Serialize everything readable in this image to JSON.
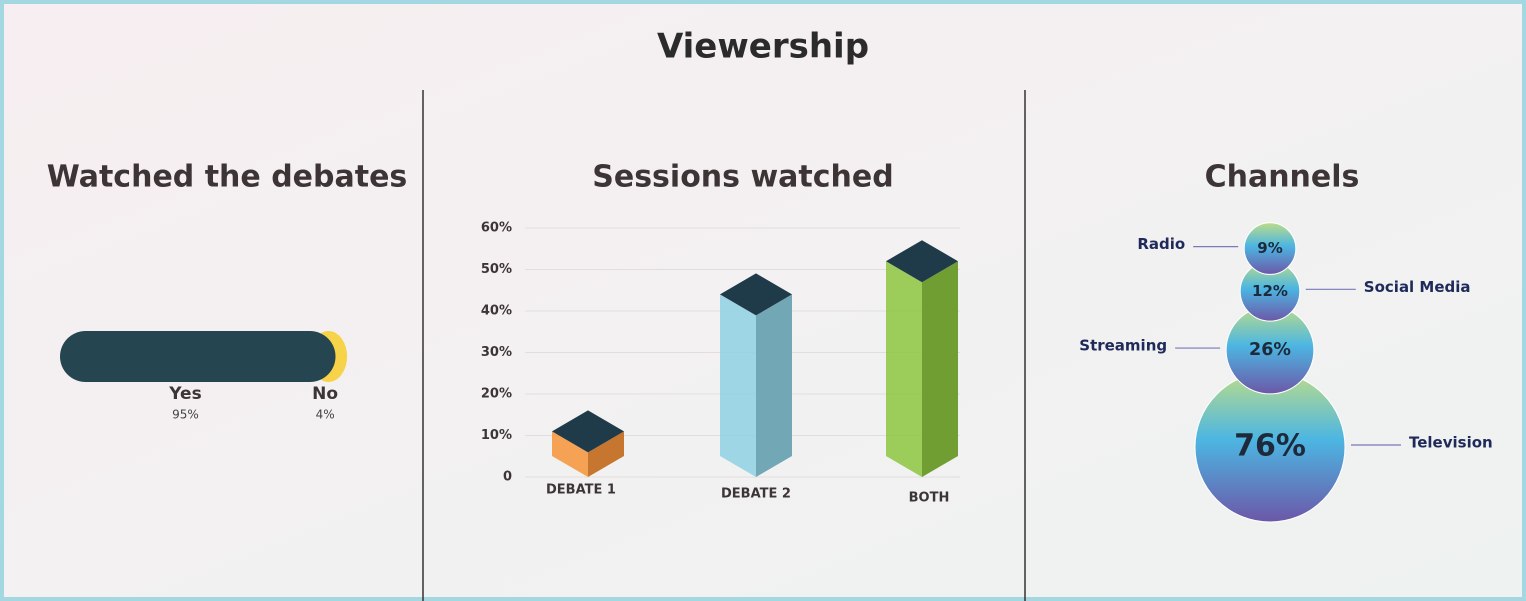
{
  "title": "Viewership",
  "chart_data": [
    {
      "type": "progress",
      "title": "Watched the debates",
      "categories": [
        "Yes",
        "No"
      ],
      "values": [
        95,
        4
      ],
      "value_labels": [
        "95%",
        "4%"
      ],
      "colors": [
        "#254550",
        "#f6d348"
      ]
    },
    {
      "type": "bar3d",
      "title": "Sessions watched",
      "categories": [
        "DEBATE 1",
        "DEBATE 2",
        "BOTH"
      ],
      "values": [
        11,
        44,
        52
      ],
      "colors": [
        "#f7943a",
        "#8fd1e4",
        "#8dc63f"
      ],
      "top_color": "#1f3a48",
      "ylim": [
        0,
        60
      ],
      "yticks": [
        0,
        {
          "value": 10,
          "label": "10%"
        },
        {
          "value": 20,
          "label": "20%"
        },
        {
          "value": 30,
          "label": "30%"
        },
        {
          "value": 40,
          "label": "40%"
        },
        {
          "value": 50,
          "label": "50%"
        },
        {
          "value": 60,
          "label": "60%"
        }
      ],
      "grid": true
    },
    {
      "type": "bubble",
      "title": "Channels",
      "categories": [
        "Radio",
        "Social Media",
        "Streaming",
        "Television"
      ],
      "values": [
        9,
        12,
        26,
        76
      ],
      "value_labels": [
        "9%",
        "12%",
        "26%",
        "76%"
      ]
    }
  ]
}
